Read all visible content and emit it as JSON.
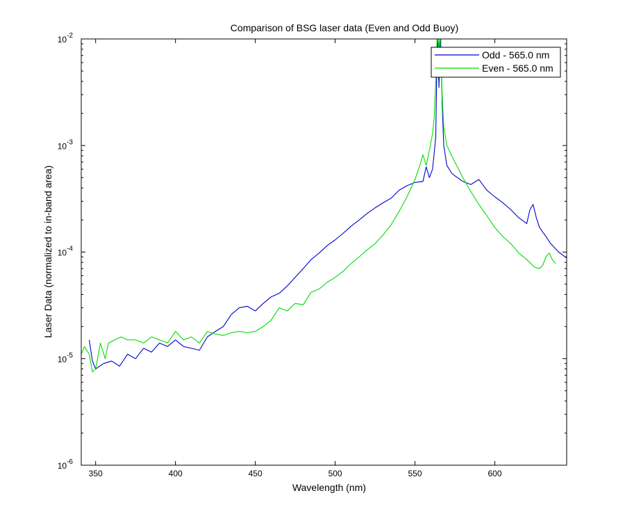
{
  "chart_data": {
    "type": "line",
    "title": "Comparison of BSG laser data (Even and Odd Buoy)",
    "xlabel": "Wavelength (nm)",
    "ylabel": "Laser Data (normalized to in-band area)",
    "xlim": [
      341,
      645
    ],
    "ylim": [
      1e-06,
      0.01
    ],
    "yscale": "log",
    "grid": false,
    "legend_position": "top-right",
    "x_ticks": [
      350,
      400,
      450,
      500,
      550,
      600
    ],
    "y_ticks": [
      {
        "value": 1e-06,
        "base": "10",
        "exp": "-6"
      },
      {
        "value": 1e-05,
        "base": "10",
        "exp": "-5"
      },
      {
        "value": 0.0001,
        "base": "10",
        "exp": "-4"
      },
      {
        "value": 0.001,
        "base": "10",
        "exp": "-3"
      },
      {
        "value": 0.01,
        "base": "10",
        "exp": "-2"
      }
    ],
    "series": [
      {
        "name": "Odd - 565.0 nm",
        "color": "#0000cc",
        "points": [
          [
            346,
            1.5e-05
          ],
          [
            348,
            9.5e-06
          ],
          [
            350,
            8e-06
          ],
          [
            355,
            9e-06
          ],
          [
            360,
            9.5e-06
          ],
          [
            365,
            8.5e-06
          ],
          [
            370,
            1.1e-05
          ],
          [
            375,
            1e-05
          ],
          [
            380,
            1.25e-05
          ],
          [
            385,
            1.15e-05
          ],
          [
            390,
            1.4e-05
          ],
          [
            395,
            1.3e-05
          ],
          [
            400,
            1.5e-05
          ],
          [
            405,
            1.3e-05
          ],
          [
            410,
            1.25e-05
          ],
          [
            415,
            1.2e-05
          ],
          [
            420,
            1.6e-05
          ],
          [
            425,
            1.8e-05
          ],
          [
            430,
            2e-05
          ],
          [
            435,
            2.6e-05
          ],
          [
            440,
            3e-05
          ],
          [
            445,
            3.1e-05
          ],
          [
            450,
            2.8e-05
          ],
          [
            455,
            3.3e-05
          ],
          [
            460,
            3.8e-05
          ],
          [
            465,
            4.1e-05
          ],
          [
            470,
            4.8e-05
          ],
          [
            475,
            5.8e-05
          ],
          [
            480,
            7e-05
          ],
          [
            485,
            8.5e-05
          ],
          [
            490,
            9.8e-05
          ],
          [
            495,
            0.000115
          ],
          [
            500,
            0.00013
          ],
          [
            505,
            0.00015
          ],
          [
            510,
            0.000175
          ],
          [
            515,
            0.0002
          ],
          [
            520,
            0.00023
          ],
          [
            525,
            0.00026
          ],
          [
            530,
            0.00029
          ],
          [
            535,
            0.00032
          ],
          [
            540,
            0.00038
          ],
          [
            545,
            0.00042
          ],
          [
            550,
            0.00045
          ],
          [
            555,
            0.00046
          ],
          [
            557,
            0.00063
          ],
          [
            559,
            0.0005
          ],
          [
            561,
            0.0006
          ],
          [
            563,
            0.0012
          ],
          [
            564,
            0.012
          ],
          [
            565,
            0.0035
          ],
          [
            566,
            0.012
          ],
          [
            567,
            0.0025
          ],
          [
            568,
            0.001
          ],
          [
            570,
            0.00065
          ],
          [
            573,
            0.00055
          ],
          [
            575,
            0.00052
          ],
          [
            580,
            0.00046
          ],
          [
            585,
            0.00043
          ],
          [
            590,
            0.00048
          ],
          [
            595,
            0.00038
          ],
          [
            600,
            0.00033
          ],
          [
            605,
            0.00029
          ],
          [
            610,
            0.00025
          ],
          [
            615,
            0.00021
          ],
          [
            620,
            0.000185
          ],
          [
            622,
            0.00025
          ],
          [
            624,
            0.00028
          ],
          [
            626,
            0.00021
          ],
          [
            628,
            0.00017
          ],
          [
            632,
            0.00014
          ],
          [
            635,
            0.00012
          ],
          [
            640,
            0.0001
          ],
          [
            645,
            8.8e-05
          ]
        ]
      },
      {
        "name": "Even - 565.0 nm",
        "color": "#00dd00",
        "points": [
          [
            341,
            1.1e-05
          ],
          [
            343,
            1.3e-05
          ],
          [
            346,
            1.1e-05
          ],
          [
            348,
            7.5e-06
          ],
          [
            350,
            8e-06
          ],
          [
            353,
            1.4e-05
          ],
          [
            356,
            1e-05
          ],
          [
            358,
            1.4e-05
          ],
          [
            362,
            1.5e-05
          ],
          [
            366,
            1.6e-05
          ],
          [
            370,
            1.5e-05
          ],
          [
            375,
            1.5e-05
          ],
          [
            380,
            1.4e-05
          ],
          [
            385,
            1.6e-05
          ],
          [
            390,
            1.5e-05
          ],
          [
            395,
            1.4e-05
          ],
          [
            400,
            1.8e-05
          ],
          [
            405,
            1.5e-05
          ],
          [
            410,
            1.6e-05
          ],
          [
            415,
            1.4e-05
          ],
          [
            420,
            1.8e-05
          ],
          [
            425,
            1.7e-05
          ],
          [
            430,
            1.65e-05
          ],
          [
            435,
            1.75e-05
          ],
          [
            440,
            1.8e-05
          ],
          [
            445,
            1.75e-05
          ],
          [
            450,
            1.8e-05
          ],
          [
            455,
            2e-05
          ],
          [
            460,
            2.3e-05
          ],
          [
            465,
            3e-05
          ],
          [
            470,
            2.8e-05
          ],
          [
            475,
            3.3e-05
          ],
          [
            480,
            3.2e-05
          ],
          [
            485,
            4.2e-05
          ],
          [
            490,
            4.5e-05
          ],
          [
            495,
            5.2e-05
          ],
          [
            500,
            5.8e-05
          ],
          [
            505,
            6.6e-05
          ],
          [
            510,
            7.8e-05
          ],
          [
            515,
            9e-05
          ],
          [
            520,
            0.000105
          ],
          [
            525,
            0.00012
          ],
          [
            530,
            0.000145
          ],
          [
            535,
            0.00018
          ],
          [
            540,
            0.00024
          ],
          [
            545,
            0.00033
          ],
          [
            550,
            0.00048
          ],
          [
            553,
            0.00065
          ],
          [
            555,
            0.00082
          ],
          [
            557,
            0.00065
          ],
          [
            559,
            0.0009
          ],
          [
            561,
            0.0013
          ],
          [
            562,
            0.0018
          ],
          [
            563,
            0.004
          ],
          [
            564,
            0.012
          ],
          [
            565,
            0.008
          ],
          [
            566,
            0.012
          ],
          [
            567,
            0.003
          ],
          [
            568,
            0.0015
          ],
          [
            570,
            0.001
          ],
          [
            573,
            0.0008
          ],
          [
            575,
            0.0007
          ],
          [
            580,
            0.0005
          ],
          [
            585,
            0.00037
          ],
          [
            590,
            0.00028
          ],
          [
            595,
            0.00022
          ],
          [
            600,
            0.00017
          ],
          [
            605,
            0.00014
          ],
          [
            610,
            0.00012
          ],
          [
            615,
            9.8e-05
          ],
          [
            620,
            8.5e-05
          ],
          [
            625,
            7.2e-05
          ],
          [
            628,
            7e-05
          ],
          [
            630,
            7.5e-05
          ],
          [
            632,
            9e-05
          ],
          [
            634,
            9.8e-05
          ],
          [
            636,
            8.5e-05
          ],
          [
            638,
            7.8e-05
          ]
        ]
      }
    ]
  }
}
